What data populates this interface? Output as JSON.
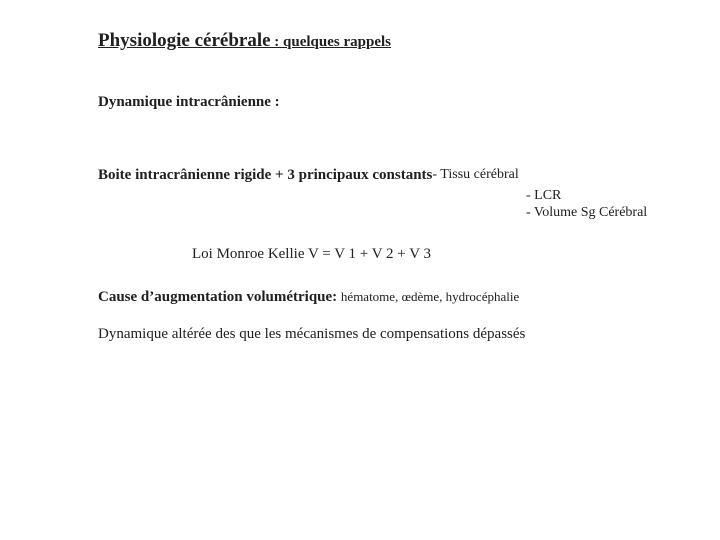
{
  "title": {
    "main": "Physiologie cérébrale",
    "sep": " : ",
    "sub": "quelques rappels"
  },
  "section": "Dynamique intracrânienne :",
  "constants": {
    "lead": "Boite intracrânienne rigide + 3 principaux constants ",
    "first": "- Tissu cérébral",
    "rest": [
      "- LCR",
      "- Volume Sg Cérébral"
    ]
  },
  "loi": "Loi Monroe Kellie   V = V 1 + V 2 + V 3",
  "cause": {
    "lead": "Cause d’augmentation volumétrique: ",
    "items": "hématome, œdème, hydrocéphalie"
  },
  "last": "Dynamique altérée des que les mécanismes de compensations dépassés"
}
